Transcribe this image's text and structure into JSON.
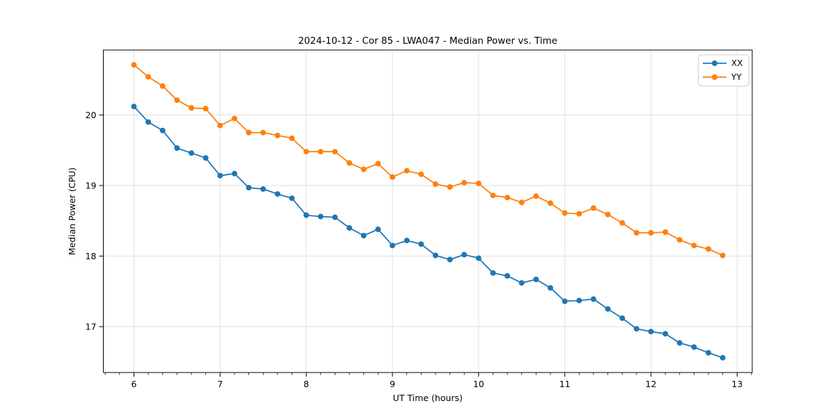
{
  "chart_data": {
    "type": "line",
    "title": "2024-10-12 - Cor 85 - LWA047 - Median Power vs. Time",
    "xlabel": "UT Time (hours)",
    "ylabel": "Median Power (CPU)",
    "xlim": [
      5.645,
      13.175
    ],
    "ylim": [
      16.35,
      20.92
    ],
    "x_ticks": [
      6,
      7,
      8,
      9,
      10,
      11,
      12,
      13
    ],
    "y_ticks": [
      17,
      18,
      19,
      20
    ],
    "minor_x_tick_step_hours": 0.16667,
    "grid": true,
    "legend_position": "upper right",
    "x": [
      6.0,
      6.167,
      6.333,
      6.5,
      6.667,
      6.833,
      7.0,
      7.167,
      7.333,
      7.5,
      7.667,
      7.833,
      8.0,
      8.167,
      8.333,
      8.5,
      8.667,
      8.833,
      9.0,
      9.167,
      9.333,
      9.5,
      9.667,
      9.833,
      10.0,
      10.167,
      10.333,
      10.5,
      10.667,
      10.833,
      11.0,
      11.167,
      11.333,
      11.5,
      11.667,
      11.833,
      12.0,
      12.167,
      12.333,
      12.5,
      12.667,
      12.833
    ],
    "series": [
      {
        "name": "XX",
        "color": "#1f77b4",
        "values": [
          20.12,
          19.9,
          19.78,
          19.53,
          19.46,
          19.39,
          19.14,
          19.17,
          18.97,
          18.95,
          18.88,
          18.82,
          18.58,
          18.56,
          18.55,
          18.4,
          18.29,
          18.38,
          18.15,
          18.22,
          18.17,
          18.01,
          17.95,
          18.02,
          17.97,
          17.76,
          17.72,
          17.62,
          17.67,
          17.55,
          17.36,
          17.37,
          17.39,
          17.25,
          17.12,
          16.97,
          16.93,
          16.9,
          16.77,
          16.71,
          16.63,
          16.56
        ]
      },
      {
        "name": "YY",
        "color": "#ff7f0e",
        "values": [
          20.71,
          20.54,
          20.41,
          20.21,
          20.1,
          20.09,
          19.85,
          19.95,
          19.75,
          19.75,
          19.71,
          19.67,
          19.48,
          19.48,
          19.48,
          19.32,
          19.23,
          19.31,
          19.12,
          19.21,
          19.16,
          19.02,
          18.98,
          19.04,
          19.03,
          18.86,
          18.83,
          18.76,
          18.85,
          18.75,
          18.61,
          18.6,
          18.68,
          18.59,
          18.47,
          18.33,
          18.33,
          18.34,
          18.23,
          18.15,
          18.1,
          18.01
        ]
      }
    ]
  },
  "style_colors": {
    "grid": "#e0e0e0",
    "spine": "#000000",
    "tick": "#000000",
    "legend_border": "#cccccc",
    "legend_bg": "#ffffff"
  }
}
